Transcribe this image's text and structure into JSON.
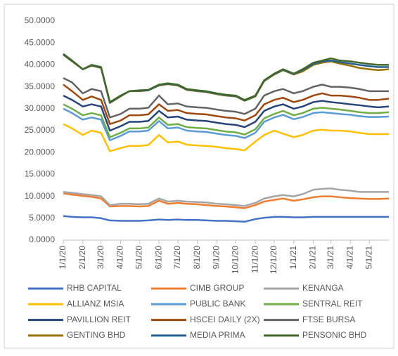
{
  "chart_data": {
    "type": "line",
    "x": [
      "1/1/20",
      "1/15/20",
      "2/1/20",
      "2/15/20",
      "3/1/20",
      "3/15/20",
      "4/1/20",
      "4/15/20",
      "5/1/20",
      "5/15/20",
      "6/1/20",
      "6/15/20",
      "7/1/20",
      "7/15/20",
      "8/1/20",
      "8/15/20",
      "9/1/20",
      "9/15/20",
      "10/1/20",
      "10/15/20",
      "11/1/20",
      "11/15/20",
      "12/1/20",
      "12/15/20",
      "1/1/21",
      "1/15/21",
      "2/1/21",
      "2/15/21",
      "3/1/21",
      "3/15/21",
      "4/1/21",
      "4/15/21",
      "5/1/21",
      "5/15/21",
      "6/1/21"
    ],
    "xticks": [
      "1/1/20",
      "2/1/20",
      "3/1/20",
      "4/1/20",
      "5/1/20",
      "6/1/20",
      "7/1/20",
      "8/1/20",
      "9/1/20",
      "10/1/20",
      "11/1/20",
      "12/1/20",
      "1/1/21",
      "2/1/21",
      "3/1/21",
      "4/1/21",
      "5/1/21"
    ],
    "ylim": [
      0,
      50
    ],
    "yticks": [
      {
        "value": 0,
        "label": "0.0000"
      },
      {
        "value": 5,
        "label": "5.0000"
      },
      {
        "value": 10,
        "label": "10.0000"
      },
      {
        "value": 15,
        "label": "15.0000"
      },
      {
        "value": 20,
        "label": "20.0000"
      },
      {
        "value": 25,
        "label": "25.0000"
      },
      {
        "value": 30,
        "label": "30.0000"
      },
      {
        "value": 35,
        "label": "35.0000"
      },
      {
        "value": 40,
        "label": "40.0000"
      },
      {
        "value": 45,
        "label": "45.0000"
      },
      {
        "value": 50,
        "label": "50.0000"
      }
    ],
    "grid": false,
    "legend": "bottom",
    "series": [
      {
        "name": "RHB CAPITAL",
        "color": "#4472c4",
        "values": [
          5.5,
          5.3,
          5.2,
          5.2,
          5,
          4.5,
          4.4,
          4.4,
          4.4,
          4.5,
          4.7,
          4.6,
          4.7,
          4.6,
          4.6,
          4.5,
          4.4,
          4.4,
          4.3,
          4.2,
          4.8,
          5.1,
          5.3,
          5.3,
          5.2,
          5.2,
          5.3,
          5.3,
          5.3,
          5.3,
          5.3,
          5.3,
          5.3,
          5.3,
          5.3
        ]
      },
      {
        "name": "CIMB GROUP",
        "color": "#ed7d31",
        "values": [
          10.7,
          10.4,
          10.1,
          9.9,
          9.5,
          7.7,
          7.8,
          7.8,
          7.7,
          7.8,
          9,
          8.3,
          8.5,
          8.3,
          8.2,
          8,
          7.8,
          7.7,
          7.5,
          7.3,
          8,
          8.8,
          9.2,
          9.5,
          9,
          9.3,
          9.8,
          10,
          10,
          9.8,
          9.6,
          9.5,
          9.4,
          9.4,
          9.5
        ]
      },
      {
        "name": "KENANGA",
        "color": "#a5a5a5",
        "values": [
          11,
          10.8,
          10.5,
          10.3,
          10,
          8,
          8.3,
          8.3,
          8.2,
          8.3,
          9.5,
          8.8,
          9,
          8.8,
          8.7,
          8.6,
          8.3,
          8.2,
          8,
          7.8,
          8.5,
          9.5,
          10,
          10.3,
          10,
          10.5,
          11.5,
          11.7,
          11.8,
          11.5,
          11.3,
          11,
          11,
          11,
          11
        ]
      },
      {
        "name": "ALLIANZ MSIA",
        "color": "#ffc000",
        "values": [
          26.5,
          25.5,
          24,
          25,
          24.5,
          20.3,
          21,
          21.5,
          21.5,
          21.7,
          24,
          22.3,
          22.5,
          21.8,
          21.6,
          21.5,
          21.3,
          21,
          20.8,
          20.5,
          22.5,
          24,
          25,
          24.3,
          23.5,
          24,
          25,
          25.2,
          25,
          25,
          24.8,
          24.5,
          24.2,
          24.2,
          24.2
        ]
      },
      {
        "name": "PUBLIC BANK",
        "color": "#5b9bd5",
        "values": [
          30,
          29,
          27.5,
          28,
          27.5,
          22.8,
          23.8,
          24.8,
          24.8,
          25,
          27.2,
          25.5,
          25.7,
          25,
          24.8,
          24.7,
          24.3,
          24,
          23.8,
          23.3,
          24.5,
          27,
          28,
          28.6,
          27.6,
          28.1,
          29,
          29.2,
          29,
          28.8,
          28.6,
          28.3,
          28.1,
          28.1,
          28.2
        ]
      },
      {
        "name": "SENTRAL REIT",
        "color": "#70ad47",
        "values": [
          31,
          30,
          28.5,
          29,
          28.5,
          23.5,
          24.5,
          25.5,
          25.5,
          25.7,
          28,
          26.3,
          26.5,
          25.8,
          25.6,
          25.5,
          25.1,
          24.8,
          24.6,
          24.1,
          25.3,
          27.8,
          28.8,
          29.5,
          28.5,
          29,
          30,
          30.2,
          30,
          29.8,
          29.5,
          29.2,
          29,
          29,
          29.2
        ]
      },
      {
        "name": "PAVILLION REIT",
        "color": "#264478",
        "values": [
          33,
          32,
          30.5,
          31,
          30.5,
          25,
          26,
          27,
          27,
          27.2,
          29.5,
          28,
          28.2,
          27.5,
          27.3,
          27.2,
          26.8,
          26.5,
          26.3,
          25.8,
          27,
          29.5,
          30.5,
          31,
          30,
          30.5,
          31.5,
          31.8,
          31.5,
          31.3,
          31,
          30.8,
          30.5,
          30.3,
          30.5
        ]
      },
      {
        "name": "HSCEI DAILY (2X)",
        "color": "#9e480e",
        "values": [
          35.5,
          34,
          32,
          32.8,
          32,
          26.5,
          27.3,
          28.5,
          28.5,
          28.7,
          31,
          29.5,
          29.7,
          29,
          28.8,
          28.7,
          28.3,
          28,
          27.8,
          27.3,
          28.5,
          31,
          32,
          32.5,
          31.5,
          32,
          33,
          33.5,
          33,
          33,
          32.8,
          32.5,
          32,
          32,
          32.3
        ]
      },
      {
        "name": "FTSE BURSA",
        "color": "#636363",
        "values": [
          37,
          36,
          33.5,
          34.5,
          34,
          28,
          28.8,
          30,
          30,
          30.2,
          33,
          31,
          31.2,
          30.5,
          30.3,
          30.2,
          29.8,
          29.5,
          29.3,
          28.8,
          30,
          33,
          34,
          34.5,
          33.5,
          34,
          35,
          35.5,
          35,
          35,
          34.8,
          34.5,
          34,
          34,
          34
        ]
      },
      {
        "name": "GENTING BHD",
        "color": "#997300",
        "values": [
          42.3,
          40.8,
          39,
          39.8,
          39.3,
          31.3,
          32.8,
          34,
          34,
          34.2,
          35.3,
          35.6,
          35.3,
          34.3,
          34,
          33.8,
          33.3,
          33,
          32.8,
          31.8,
          32.8,
          36.3,
          37.8,
          38.8,
          37.8,
          38.5,
          40,
          40.5,
          40.8,
          40.3,
          39.8,
          39.3,
          39,
          38.8,
          39
        ]
      },
      {
        "name": "MEDIA PRIMA",
        "color": "#255e91",
        "values": [
          42.4,
          40.9,
          39,
          39.9,
          39.4,
          31.4,
          32.9,
          34,
          34.1,
          34.2,
          35.4,
          35.7,
          35.4,
          34.4,
          34.1,
          33.9,
          33.4,
          33.1,
          32.9,
          31.9,
          32.9,
          36.4,
          37.9,
          38.9,
          37.9,
          38.8,
          40.2,
          40.8,
          41,
          40.6,
          40.3,
          40,
          39.7,
          39.5,
          39.5
        ]
      },
      {
        "name": "PENSONIC BHD",
        "color": "#43682b",
        "values": [
          42.5,
          41,
          39,
          40,
          39.5,
          31.5,
          33,
          34,
          34.2,
          34.3,
          35.5,
          35.8,
          35.5,
          34.5,
          34.2,
          34,
          33.5,
          33.2,
          33,
          32,
          33,
          36.5,
          38,
          39,
          38,
          39,
          40.5,
          41,
          41.5,
          41,
          40.8,
          40.5,
          40.2,
          40,
          40
        ]
      }
    ]
  }
}
